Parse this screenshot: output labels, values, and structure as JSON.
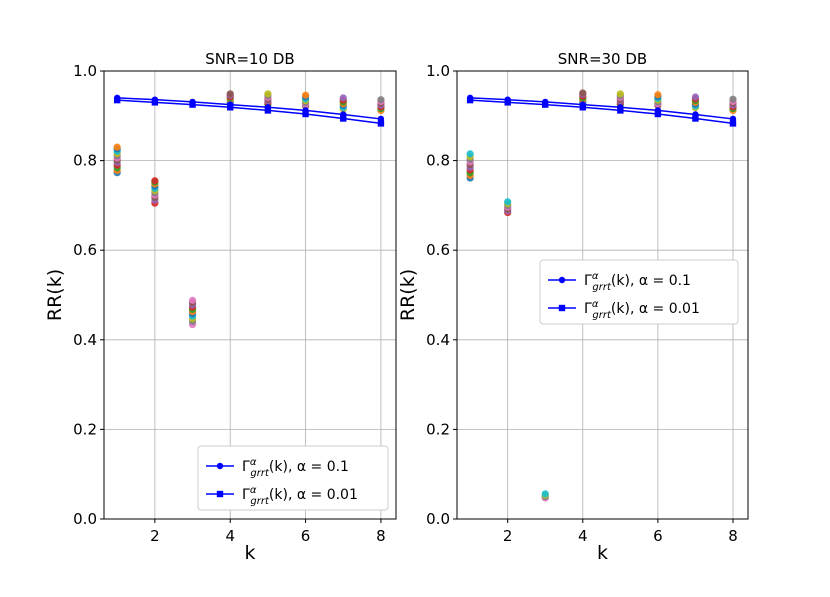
{
  "chart_data": [
    {
      "type": "scatter",
      "title": "SNR=10 DB",
      "xlabel": "k",
      "ylabel": "RR(k)",
      "xlim": [
        0.65,
        8.4
      ],
      "ylim": [
        0.0,
        1.0
      ],
      "xticks": [
        2,
        4,
        6,
        8
      ],
      "xtick_labels": [
        "2",
        "4",
        "6",
        "8"
      ],
      "yticks": [
        0.0,
        0.2,
        0.4,
        0.6,
        0.8,
        1.0
      ],
      "ytick_labels": [
        "0.0",
        "0.2",
        "0.4",
        "0.6",
        "0.8",
        "1.0"
      ],
      "grid": true,
      "legend_position": "lower-right",
      "series": [
        {
          "name": "alpha=0.1",
          "legend_prefix": "Γ",
          "legend_sub": "grrt",
          "legend_sup": "α",
          "legend_suffix": "(k), α = 0.1",
          "marker": "circle",
          "x": [
            1,
            2,
            3,
            4,
            5,
            6,
            7,
            8
          ],
          "values": [
            0.94,
            0.936,
            0.931,
            0.925,
            0.919,
            0.912,
            0.903,
            0.893
          ]
        },
        {
          "name": "alpha=0.01",
          "legend_prefix": "Γ",
          "legend_sub": "grrt",
          "legend_sup": "α",
          "legend_suffix": "(k), α = 0.01",
          "marker": "square",
          "x": [
            1,
            2,
            3,
            4,
            5,
            6,
            7,
            8
          ],
          "values": [
            0.935,
            0.93,
            0.925,
            0.919,
            0.912,
            0.904,
            0.894,
            0.883
          ]
        }
      ],
      "scatter_clusters": [
        {
          "x": 1,
          "values": [
            0.773,
            0.778,
            0.784,
            0.79,
            0.796,
            0.801,
            0.806,
            0.811,
            0.816,
            0.821,
            0.826,
            0.83
          ]
        },
        {
          "x": 2,
          "values": [
            0.705,
            0.712,
            0.718,
            0.723,
            0.728,
            0.733,
            0.738,
            0.743,
            0.748,
            0.752,
            0.755
          ]
        },
        {
          "x": 3,
          "values": [
            0.434,
            0.441,
            0.447,
            0.453,
            0.458,
            0.463,
            0.468,
            0.473,
            0.478,
            0.483,
            0.488
          ]
        },
        {
          "x": 4,
          "values": [
            0.928,
            0.932,
            0.936,
            0.94,
            0.943,
            0.946,
            0.949
          ]
        },
        {
          "x": 5,
          "values": [
            0.925,
            0.929,
            0.933,
            0.937,
            0.941,
            0.945,
            0.949
          ]
        },
        {
          "x": 6,
          "values": [
            0.922,
            0.926,
            0.93,
            0.934,
            0.938,
            0.942,
            0.946
          ]
        },
        {
          "x": 7,
          "values": [
            0.915,
            0.919,
            0.923,
            0.927,
            0.931,
            0.935,
            0.94
          ]
        },
        {
          "x": 8,
          "values": [
            0.912,
            0.916,
            0.92,
            0.924,
            0.928,
            0.932,
            0.936
          ]
        }
      ]
    },
    {
      "type": "scatter",
      "title": "SNR=30 DB",
      "xlabel": "k",
      "ylabel": "RR(k)",
      "xlim": [
        0.65,
        8.4
      ],
      "ylim": [
        0.0,
        1.0
      ],
      "xticks": [
        2,
        4,
        6,
        8
      ],
      "xtick_labels": [
        "2",
        "4",
        "6",
        "8"
      ],
      "yticks": [
        0.0,
        0.2,
        0.4,
        0.6,
        0.8,
        1.0
      ],
      "ytick_labels": [
        "0.0",
        "0.2",
        "0.4",
        "0.6",
        "0.8",
        "1.0"
      ],
      "grid": true,
      "legend_position": "center-right",
      "series": [
        {
          "name": "alpha=0.1",
          "legend_prefix": "Γ",
          "legend_sub": "grrt",
          "legend_sup": "α",
          "legend_suffix": "(k), α = 0.1",
          "marker": "circle",
          "x": [
            1,
            2,
            3,
            4,
            5,
            6,
            7,
            8
          ],
          "values": [
            0.94,
            0.936,
            0.931,
            0.925,
            0.919,
            0.912,
            0.903,
            0.893
          ]
        },
        {
          "name": "alpha=0.01",
          "legend_prefix": "Γ",
          "legend_sub": "grrt",
          "legend_sup": "α",
          "legend_suffix": "(k), α = 0.01",
          "marker": "square",
          "x": [
            1,
            2,
            3,
            4,
            5,
            6,
            7,
            8
          ],
          "values": [
            0.935,
            0.93,
            0.925,
            0.919,
            0.912,
            0.904,
            0.894,
            0.883
          ]
        }
      ],
      "scatter_clusters": [
        {
          "x": 1,
          "values": [
            0.761,
            0.767,
            0.773,
            0.779,
            0.785,
            0.791,
            0.797,
            0.803,
            0.809,
            0.815
          ]
        },
        {
          "x": 2,
          "values": [
            0.684,
            0.688,
            0.692,
            0.696,
            0.7,
            0.704,
            0.708
          ]
        },
        {
          "x": 3,
          "values": [
            0.047,
            0.05,
            0.053,
            0.056
          ]
        },
        {
          "x": 4,
          "values": [
            0.928,
            0.932,
            0.936,
            0.94,
            0.944,
            0.948,
            0.951
          ]
        },
        {
          "x": 5,
          "values": [
            0.925,
            0.929,
            0.933,
            0.937,
            0.941,
            0.945,
            0.949
          ]
        },
        {
          "x": 6,
          "values": [
            0.923,
            0.927,
            0.931,
            0.935,
            0.939,
            0.943,
            0.947
          ]
        },
        {
          "x": 7,
          "values": [
            0.918,
            0.922,
            0.926,
            0.93,
            0.934,
            0.938,
            0.942
          ]
        },
        {
          "x": 8,
          "values": [
            0.912,
            0.916,
            0.92,
            0.924,
            0.928,
            0.932,
            0.937
          ]
        }
      ]
    }
  ],
  "colors": {
    "line": "#0000ff",
    "scatter_palette": [
      "#1f77b4",
      "#ff7f0e",
      "#2ca02c",
      "#d62728",
      "#9467bd",
      "#8c564b",
      "#e377c2",
      "#7f7f7f",
      "#bcbd22",
      "#17becf"
    ]
  }
}
